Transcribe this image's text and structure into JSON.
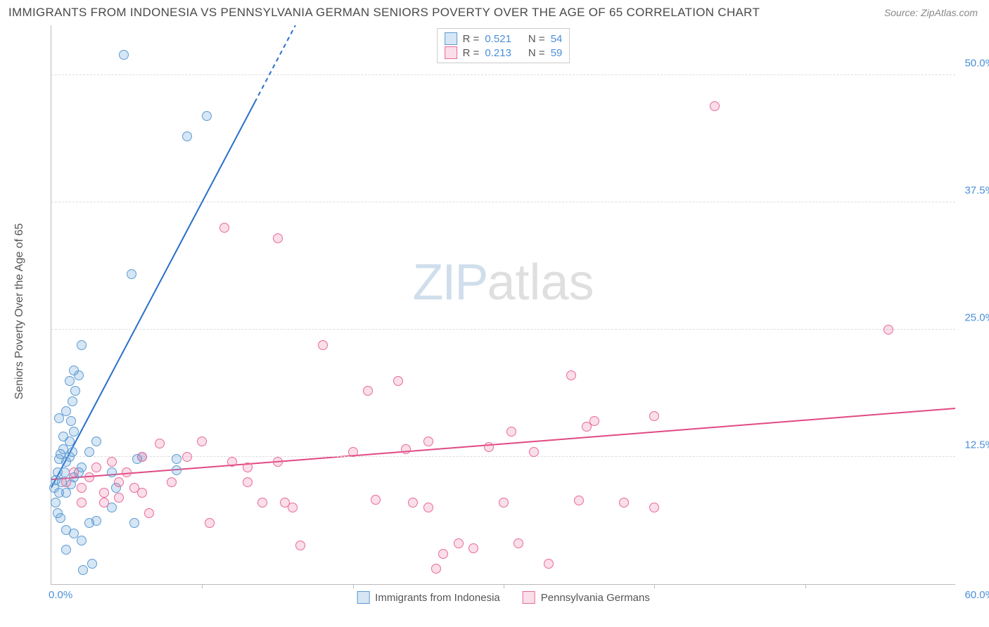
{
  "header": {
    "title": "IMMIGRANTS FROM INDONESIA VS PENNSYLVANIA GERMAN SENIORS POVERTY OVER THE AGE OF 65 CORRELATION CHART",
    "source": "Source: ZipAtlas.com"
  },
  "chart": {
    "type": "scatter",
    "y_axis_title": "Seniors Poverty Over the Age of 65",
    "xlim": [
      0,
      60
    ],
    "ylim": [
      0,
      55
    ],
    "x_origin_label": "0.0%",
    "x_max_label": "60.0%",
    "y_ticks": [
      {
        "v": 12.5,
        "label": "12.5%"
      },
      {
        "v": 25.0,
        "label": "25.0%"
      },
      {
        "v": 37.5,
        "label": "37.5%"
      },
      {
        "v": 50.0,
        "label": "50.0%"
      }
    ],
    "x_tick_positions": [
      10,
      20,
      30,
      40,
      50
    ],
    "background_color": "#ffffff",
    "grid_color": "#dddddd",
    "axis_color": "#bbbbbb",
    "tick_label_color": "#4a8fd8",
    "point_radius": 7,
    "point_stroke_width": 1.5,
    "point_fill_opacity": 0.25,
    "series": [
      {
        "key": "indonesia",
        "label": "Immigrants from Indonesia",
        "color_stroke": "#5b9bd5",
        "color_fill": "rgba(91,155,213,0.25)",
        "trend": {
          "x1": 0,
          "y1": 9.5,
          "x2": 16.2,
          "y2": 55,
          "solid_until_x": 13.5,
          "color": "#2a6fc9",
          "width": 2
        },
        "r_label": "R =",
        "r_value": "0.521",
        "n_label": "N =",
        "n_value": "54",
        "points": [
          [
            0.2,
            9.5
          ],
          [
            0.3,
            10.2
          ],
          [
            0.4,
            11.0
          ],
          [
            0.5,
            12.3
          ],
          [
            0.6,
            12.8
          ],
          [
            0.8,
            13.3
          ],
          [
            0.3,
            8.0
          ],
          [
            0.5,
            9.0
          ],
          [
            0.7,
            10.0
          ],
          [
            0.9,
            11.0
          ],
          [
            1.0,
            12.0
          ],
          [
            1.2,
            12.5
          ],
          [
            1.4,
            13.0
          ],
          [
            1.0,
            9.0
          ],
          [
            1.3,
            9.8
          ],
          [
            1.5,
            10.5
          ],
          [
            1.8,
            11.0
          ],
          [
            2.0,
            11.5
          ],
          [
            0.4,
            7.0
          ],
          [
            0.6,
            6.5
          ],
          [
            1.0,
            5.3
          ],
          [
            1.5,
            5.0
          ],
          [
            2.0,
            4.3
          ],
          [
            2.5,
            6.0
          ],
          [
            3.0,
            6.2
          ],
          [
            2.1,
            1.4
          ],
          [
            2.7,
            2.0
          ],
          [
            1.0,
            3.4
          ],
          [
            1.2,
            14.0
          ],
          [
            1.5,
            15.0
          ],
          [
            1.3,
            16.0
          ],
          [
            1.0,
            17.0
          ],
          [
            1.4,
            18.0
          ],
          [
            1.6,
            19.0
          ],
          [
            1.2,
            20.0
          ],
          [
            1.8,
            20.5
          ],
          [
            1.5,
            21.0
          ],
          [
            2.0,
            23.5
          ],
          [
            4.8,
            52.0
          ],
          [
            5.7,
            12.3
          ],
          [
            4.0,
            11.0
          ],
          [
            6.0,
            12.5
          ],
          [
            8.3,
            12.3
          ],
          [
            8.3,
            11.2
          ],
          [
            4.0,
            7.5
          ],
          [
            4.3,
            9.5
          ],
          [
            5.5,
            6.0
          ],
          [
            2.5,
            13.0
          ],
          [
            3.0,
            14.0
          ],
          [
            5.3,
            30.5
          ],
          [
            9.0,
            44.0
          ],
          [
            10.3,
            46.0
          ],
          [
            0.8,
            14.5
          ],
          [
            0.5,
            16.3
          ]
        ]
      },
      {
        "key": "pa_german",
        "label": "Pennsylvania Germans",
        "color_stroke": "#e86a9a",
        "color_fill": "rgba(232,106,154,0.22)",
        "trend": {
          "x1": 0,
          "y1": 10.3,
          "x2": 60,
          "y2": 17.3,
          "solid_until_x": 60,
          "color": "#e04a83",
          "width": 2
        },
        "r_label": "R =",
        "r_value": "0.213",
        "n_label": "N =",
        "n_value": "59",
        "points": [
          [
            1.0,
            10.0
          ],
          [
            1.5,
            11.0
          ],
          [
            2.0,
            9.5
          ],
          [
            2.5,
            10.5
          ],
          [
            3.0,
            11.5
          ],
          [
            3.5,
            9.0
          ],
          [
            4.0,
            12.0
          ],
          [
            4.5,
            10.0
          ],
          [
            5.0,
            11.0
          ],
          [
            5.5,
            9.5
          ],
          [
            6.0,
            12.5
          ],
          [
            6.5,
            7.0
          ],
          [
            7.2,
            13.8
          ],
          [
            8.0,
            10.0
          ],
          [
            4.5,
            8.5
          ],
          [
            3.5,
            8.0
          ],
          [
            2.0,
            8.0
          ],
          [
            6.0,
            9.0
          ],
          [
            9.0,
            12.5
          ],
          [
            10.0,
            14.0
          ],
          [
            10.5,
            6.0
          ],
          [
            11.5,
            35.0
          ],
          [
            12.0,
            12.0
          ],
          [
            13.0,
            11.5
          ],
          [
            14.0,
            8.0
          ],
          [
            15.0,
            12.0
          ],
          [
            15.0,
            34.0
          ],
          [
            15.5,
            8.0
          ],
          [
            16.0,
            7.5
          ],
          [
            16.5,
            3.8
          ],
          [
            18.0,
            23.5
          ],
          [
            20.0,
            13.0
          ],
          [
            21.0,
            19.0
          ],
          [
            21.5,
            8.3
          ],
          [
            23.0,
            20.0
          ],
          [
            23.5,
            13.3
          ],
          [
            24.0,
            8.0
          ],
          [
            25.0,
            14.0
          ],
          [
            25.0,
            7.5
          ],
          [
            25.5,
            1.5
          ],
          [
            26.0,
            3.0
          ],
          [
            27.0,
            4.0
          ],
          [
            28.0,
            3.5
          ],
          [
            29.0,
            13.5
          ],
          [
            30.0,
            8.0
          ],
          [
            30.5,
            15.0
          ],
          [
            31.0,
            4.0
          ],
          [
            32.0,
            13.0
          ],
          [
            33.0,
            2.0
          ],
          [
            34.5,
            20.5
          ],
          [
            35.0,
            8.2
          ],
          [
            35.5,
            15.5
          ],
          [
            36.0,
            16.0
          ],
          [
            38.0,
            8.0
          ],
          [
            40.0,
            16.5
          ],
          [
            40.0,
            7.5
          ],
          [
            44.0,
            47.0
          ],
          [
            55.5,
            25.0
          ],
          [
            13.0,
            10.0
          ]
        ]
      }
    ],
    "watermark": {
      "zip": "ZIP",
      "atlas": "atlas"
    }
  }
}
